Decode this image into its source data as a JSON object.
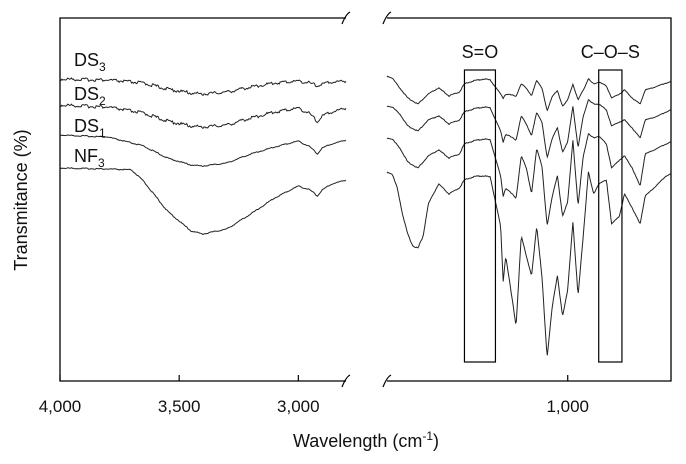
{
  "chart_data": {
    "type": "line",
    "title": "",
    "xlabel": {
      "main": "Wavelength (cm",
      "sup": "-1",
      "tail": ")"
    },
    "ylabel": "Transmitance (%)",
    "x_break": true,
    "left_panel_xlim": [
      4000,
      2800
    ],
    "right_panel_xlim": [
      1700,
      600
    ],
    "x_ticks": [
      {
        "value": 4000,
        "label": "4,000"
      },
      {
        "value": 3500,
        "label": "3,500"
      },
      {
        "value": 3000,
        "label": "3,000"
      },
      {
        "value": 1000,
        "label": "1,000"
      }
    ],
    "grid": false,
    "series": [
      {
        "name": "DS3",
        "label_main": "DS",
        "label_sub": "3",
        "left": {
          "x": [
            4000,
            3800,
            3650,
            3550,
            3450,
            3400,
            3300,
            3200,
            3100,
            3000,
            2950,
            2920,
            2900,
            2860,
            2800
          ],
          "y": [
            3,
            4,
            7,
            13,
            17,
            18,
            16,
            11,
            7,
            5,
            7,
            10,
            8,
            6,
            5
          ]
        },
        "right": {
          "x": [
            1700,
            1680,
            1650,
            1620,
            1580,
            1540,
            1500,
            1460,
            1420,
            1400,
            1380,
            1350,
            1320,
            1300,
            1260,
            1250,
            1240,
            1200,
            1180,
            1160,
            1140,
            1120,
            1100,
            1080,
            1060,
            1040,
            1020,
            1000,
            980,
            960,
            940,
            920,
            900,
            880,
            850,
            830,
            800,
            780,
            750,
            720,
            700,
            650,
            620,
            600
          ],
          "y": [
            0,
            2,
            12,
            22,
            28,
            18,
            12,
            20,
            16,
            8,
            6,
            4,
            3,
            4,
            18,
            22,
            18,
            20,
            8,
            12,
            20,
            4,
            12,
            35,
            20,
            15,
            30,
            24,
            8,
            24,
            14,
            3,
            8,
            6,
            10,
            22,
            18,
            14,
            22,
            28,
            14,
            10,
            7,
            6
          ]
        }
      },
      {
        "name": "DS2",
        "label_main": "DS",
        "label_sub": "2",
        "left": {
          "x": [
            4000,
            3800,
            3650,
            3550,
            3450,
            3400,
            3300,
            3200,
            3100,
            3000,
            2950,
            2920,
            2900,
            2860,
            2800
          ],
          "y": [
            29,
            31,
            37,
            45,
            50,
            51,
            49,
            42,
            36,
            32,
            38,
            46,
            40,
            36,
            32
          ]
        },
        "right": {
          "x": [
            1700,
            1680,
            1650,
            1620,
            1580,
            1540,
            1500,
            1460,
            1420,
            1400,
            1380,
            1350,
            1320,
            1300,
            1260,
            1250,
            1240,
            1200,
            1180,
            1160,
            1140,
            1120,
            1100,
            1080,
            1060,
            1040,
            1020,
            1000,
            980,
            960,
            940,
            920,
            900,
            880,
            850,
            830,
            800,
            780,
            750,
            720,
            700,
            650,
            620,
            600
          ],
          "y": [
            30,
            31,
            38,
            50,
            55,
            44,
            40,
            48,
            44,
            36,
            34,
            32,
            31,
            32,
            55,
            66,
            58,
            64,
            40,
            48,
            60,
            36,
            46,
            82,
            62,
            52,
            76,
            66,
            30,
            72,
            40,
            24,
            28,
            28,
            34,
            50,
            46,
            44,
            52,
            62,
            44,
            40,
            36,
            34
          ]
        }
      },
      {
        "name": "DS1",
        "label_main": "DS",
        "label_sub": "1",
        "left": {
          "x": [
            4000,
            3800,
            3650,
            3550,
            3450,
            3400,
            3300,
            3200,
            3100,
            3000,
            2950,
            2920,
            2900,
            2860,
            2800
          ],
          "y": [
            59,
            61,
            70,
            82,
            89,
            90,
            87,
            78,
            71,
            65,
            71,
            78,
            72,
            68,
            64
          ]
        },
        "right": {
          "x": [
            1700,
            1680,
            1650,
            1620,
            1580,
            1540,
            1500,
            1460,
            1420,
            1400,
            1380,
            1350,
            1320,
            1300,
            1260,
            1250,
            1240,
            1200,
            1180,
            1160,
            1140,
            1120,
            1100,
            1080,
            1060,
            1040,
            1020,
            1000,
            980,
            960,
            940,
            920,
            900,
            880,
            850,
            830,
            800,
            780,
            750,
            720,
            700,
            650,
            620,
            600
          ],
          "y": [
            62,
            63,
            72,
            86,
            92,
            80,
            74,
            82,
            78,
            68,
            66,
            64,
            63,
            64,
            100,
            120,
            112,
            122,
            80,
            92,
            118,
            72,
            90,
            150,
            120,
            100,
            140,
            126,
            64,
            130,
            80,
            58,
            62,
            60,
            68,
            92,
            84,
            80,
            92,
            110,
            78,
            72,
            68,
            66
          ]
        }
      },
      {
        "name": "NF3",
        "label_main": "NF",
        "label_sub": "3",
        "left": {
          "x": [
            4000,
            3800,
            3700,
            3650,
            3550,
            3450,
            3400,
            3300,
            3200,
            3100,
            3000,
            2950,
            2920,
            2900,
            2860,
            2800
          ],
          "y": [
            92,
            93,
            94,
            105,
            135,
            155,
            158,
            153,
            138,
            122,
            110,
            114,
            120,
            114,
            108,
            104
          ]
        },
        "right": {
          "x": [
            1700,
            1680,
            1660,
            1640,
            1620,
            1600,
            1580,
            1560,
            1540,
            1500,
            1460,
            1420,
            1400,
            1380,
            1350,
            1320,
            1300,
            1260,
            1250,
            1240,
            1200,
            1180,
            1160,
            1140,
            1120,
            1100,
            1080,
            1060,
            1040,
            1020,
            1000,
            980,
            960,
            940,
            920,
            900,
            880,
            850,
            830,
            800,
            780,
            750,
            720,
            700,
            650,
            620,
            600
          ],
          "y": [
            96,
            98,
            112,
            138,
            158,
            170,
            172,
            160,
            128,
            108,
            118,
            112,
            104,
            102,
            100,
            100,
            101,
            150,
            205,
            180,
            250,
            160,
            180,
            200,
            150,
            200,
            282,
            230,
            200,
            240,
            214,
            146,
            220,
            160,
            96,
            118,
            108,
            104,
            148,
            140,
            118,
            132,
            148,
            120,
            108,
            100,
            98
          ]
        }
      }
    ],
    "bands": [
      {
        "label": "S=O",
        "x": [
          1400,
          1280
        ]
      },
      {
        "label": "C–O–S",
        "x": [
          880,
          790
        ]
      }
    ]
  }
}
